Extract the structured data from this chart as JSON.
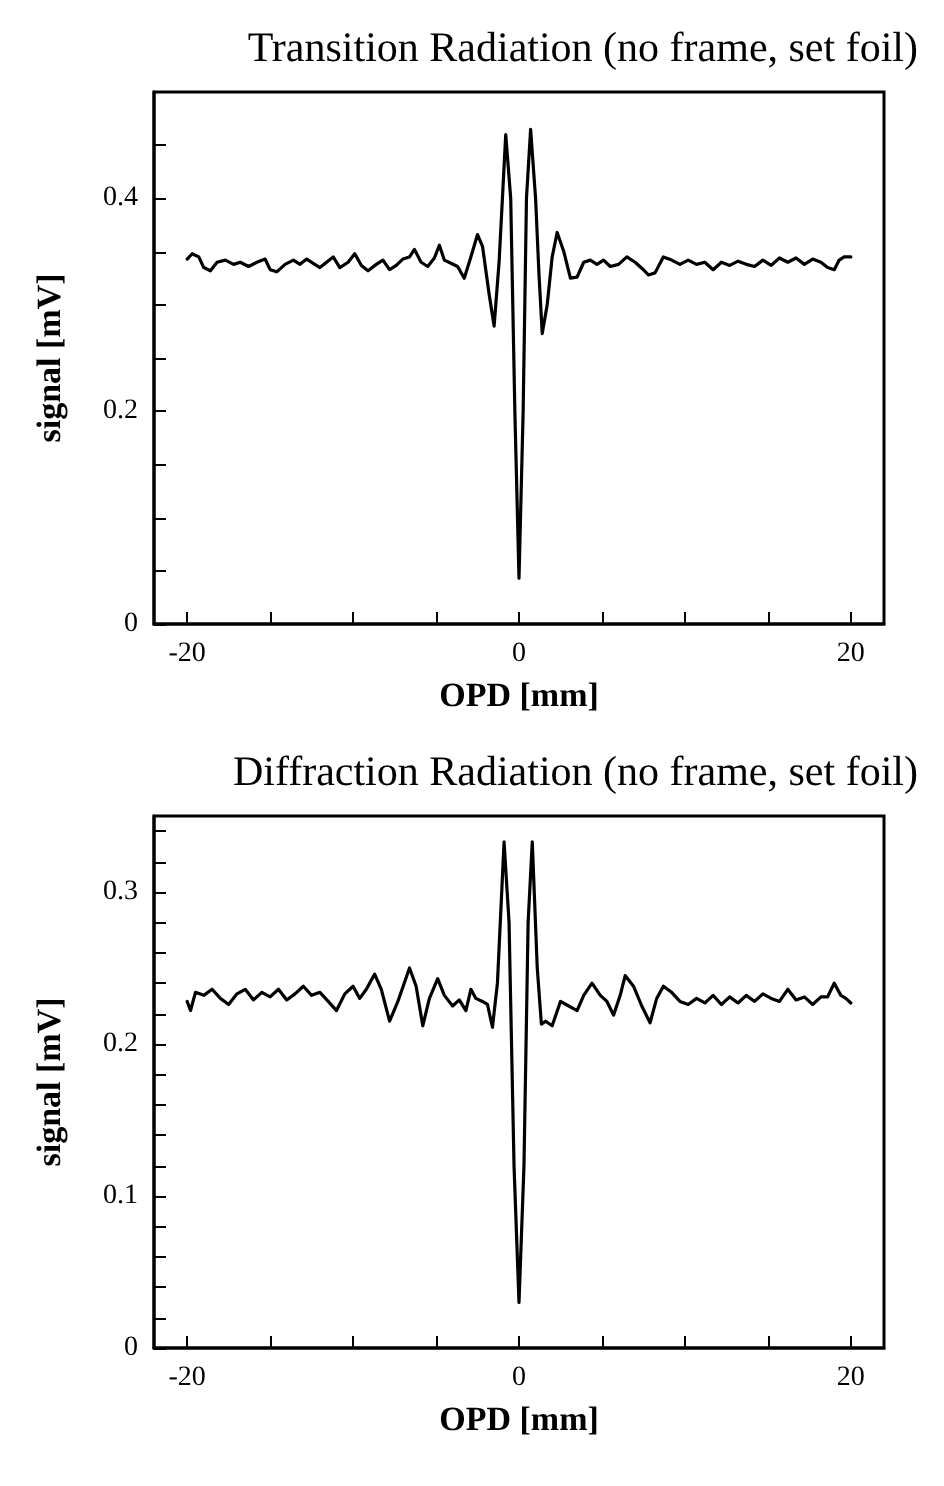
{
  "chart_data": [
    {
      "type": "line",
      "title": "Transition Radiation (no frame, set foil)",
      "xlabel": "OPD [mm]",
      "ylabel": "signal [mV]",
      "xlim": [
        -22,
        22
      ],
      "xticks": [
        -20,
        {
          "value": -15,
          "label": null
        },
        {
          "value": -10,
          "label": null
        },
        {
          "value": -5,
          "label": null
        },
        0,
        {
          "value": 5,
          "label": null
        },
        {
          "value": 10,
          "label": null
        },
        {
          "value": 15,
          "label": null
        },
        20
      ],
      "ylim": [
        0,
        0.5
      ],
      "yticks": [
        0,
        {
          "value": 0.05,
          "label": null
        },
        {
          "value": 0.1,
          "label": null
        },
        {
          "value": 0.15,
          "label": null
        },
        0.2,
        {
          "value": 0.25,
          "label": null
        },
        {
          "value": 0.3,
          "label": null
        },
        {
          "value": 0.35,
          "label": null
        },
        0.4,
        {
          "value": 0.45,
          "label": null
        }
      ],
      "grid": false,
      "marker": "none",
      "line_style": "solid",
      "x": [
        -20,
        -19.7,
        -19.3,
        -19,
        -18.6,
        -18.2,
        -17.7,
        -17.2,
        -16.8,
        -16.3,
        -15.8,
        -15.3,
        -15,
        -14.6,
        -14.1,
        -13.6,
        -13.2,
        -12.8,
        -12.4,
        -12,
        -11.6,
        -11.2,
        -10.8,
        -10.3,
        -9.9,
        -9.5,
        -9.1,
        -8.6,
        -8.2,
        -7.8,
        -7.4,
        -7,
        -6.6,
        -6.3,
        -5.9,
        -5.5,
        -5.1,
        -4.8,
        -4.5,
        -4.1,
        -3.7,
        -3.3,
        -2.9,
        -2.5,
        -2.2,
        -1.8,
        -1.5,
        -1.2,
        -0.8,
        -0.5,
        -0.25,
        0,
        0.25,
        0.45,
        0.7,
        1.0,
        1.2,
        1.4,
        1.7,
        2.0,
        2.3,
        2.7,
        3.1,
        3.5,
        3.9,
        4.3,
        4.7,
        5.1,
        5.5,
        6,
        6.5,
        7,
        7.5,
        7.8,
        8.2,
        8.7,
        9.2,
        9.7,
        10.2,
        10.7,
        11.2,
        11.7,
        12.2,
        12.7,
        13.2,
        13.7,
        14.2,
        14.7,
        15.2,
        15.7,
        16.2,
        16.7,
        17.2,
        17.7,
        18.2,
        18.6,
        19,
        19.3,
        19.6,
        20
      ],
      "series": [
        {
          "color": "#000000",
          "values": [
            0.343,
            0.348,
            0.345,
            0.335,
            0.332,
            0.34,
            0.342,
            0.338,
            0.34,
            0.336,
            0.34,
            0.343,
            0.333,
            0.331,
            0.338,
            0.342,
            0.338,
            0.343,
            0.339,
            0.335,
            0.34,
            0.345,
            0.335,
            0.34,
            0.348,
            0.337,
            0.332,
            0.338,
            0.342,
            0.333,
            0.337,
            0.343,
            0.345,
            0.352,
            0.34,
            0.336,
            0.344,
            0.356,
            0.342,
            0.339,
            0.336,
            0.325,
            0.345,
            0.366,
            0.355,
            0.31,
            0.28,
            0.34,
            0.46,
            0.4,
            0.2,
            0.043,
            0.2,
            0.4,
            0.465,
            0.4,
            0.33,
            0.273,
            0.3,
            0.345,
            0.368,
            0.35,
            0.325,
            0.326,
            0.34,
            0.342,
            0.338,
            0.342,
            0.336,
            0.338,
            0.345,
            0.34,
            0.333,
            0.328,
            0.33,
            0.345,
            0.342,
            0.338,
            0.342,
            0.338,
            0.34,
            0.333,
            0.34,
            0.337,
            0.341,
            0.338,
            0.336,
            0.342,
            0.337,
            0.344,
            0.34,
            0.344,
            0.338,
            0.343,
            0.34,
            0.335,
            0.333,
            0.342,
            0.345,
            0.345
          ]
        }
      ]
    },
    {
      "type": "line",
      "title": "Diffraction Radiation (no frame, set foil)",
      "xlabel": "OPD [mm]",
      "ylabel": "signal [mV]",
      "xlim": [
        -22,
        22
      ],
      "xticks": [
        -20,
        {
          "value": -15,
          "label": null
        },
        {
          "value": -10,
          "label": null
        },
        {
          "value": -5,
          "label": null
        },
        0,
        {
          "value": 5,
          "label": null
        },
        {
          "value": 10,
          "label": null
        },
        {
          "value": 15,
          "label": null
        },
        20
      ],
      "ylim": [
        0,
        0.35
      ],
      "yticks": [
        0,
        {
          "value": 0.02,
          "label": null
        },
        {
          "value": 0.04,
          "label": null
        },
        {
          "value": 0.06,
          "label": null
        },
        {
          "value": 0.08,
          "label": null
        },
        0.1,
        {
          "value": 0.12,
          "label": null
        },
        {
          "value": 0.14,
          "label": null
        },
        {
          "value": 0.16,
          "label": null
        },
        {
          "value": 0.18,
          "label": null
        },
        0.2,
        {
          "value": 0.22,
          "label": null
        },
        {
          "value": 0.24,
          "label": null
        },
        {
          "value": 0.26,
          "label": null
        },
        {
          "value": 0.28,
          "label": null
        },
        0.3,
        {
          "value": 0.32,
          "label": null
        },
        {
          "value": 0.34,
          "label": null
        }
      ],
      "grid": false,
      "marker": "none",
      "line_style": "solid",
      "x": [
        -20,
        -19.8,
        -19.5,
        -19,
        -18.5,
        -18,
        -17.5,
        -17,
        -16.5,
        -16,
        -15.5,
        -15,
        -14.5,
        -14,
        -13.5,
        -13,
        -12.5,
        -12,
        -11.5,
        -11,
        -10.5,
        -10,
        -9.6,
        -9.2,
        -8.7,
        -8.3,
        -7.8,
        -7.3,
        -6.6,
        -6.2,
        -5.8,
        -5.4,
        -4.9,
        -4.5,
        -4,
        -3.6,
        -3.2,
        -2.9,
        -2.6,
        -2.2,
        -1.9,
        -1.6,
        -1.3,
        -0.9,
        -0.6,
        -0.3,
        0,
        0.3,
        0.55,
        0.8,
        1.1,
        1.35,
        1.6,
        2.0,
        2.5,
        3.0,
        3.5,
        3.9,
        4.4,
        4.9,
        5.3,
        5.7,
        6.1,
        6.4,
        6.9,
        7.4,
        7.9,
        8.3,
        8.7,
        9.2,
        9.7,
        10.2,
        10.7,
        11.2,
        11.7,
        12.2,
        12.7,
        13.2,
        13.7,
        14.2,
        14.7,
        15.2,
        15.7,
        16.2,
        16.7,
        17.2,
        17.7,
        18.2,
        18.6,
        19,
        19.4,
        19.7,
        20
      ],
      "series": [
        {
          "color": "#000000",
          "values": [
            0.228,
            0.222,
            0.234,
            0.232,
            0.236,
            0.23,
            0.226,
            0.233,
            0.236,
            0.229,
            0.234,
            0.231,
            0.236,
            0.229,
            0.233,
            0.238,
            0.232,
            0.234,
            0.228,
            0.222,
            0.233,
            0.238,
            0.23,
            0.236,
            0.246,
            0.236,
            0.215,
            0.228,
            0.25,
            0.238,
            0.212,
            0.23,
            0.243,
            0.232,
            0.225,
            0.229,
            0.222,
            0.236,
            0.23,
            0.228,
            0.226,
            0.211,
            0.24,
            0.333,
            0.28,
            0.12,
            0.03,
            0.12,
            0.28,
            0.333,
            0.25,
            0.213,
            0.215,
            0.212,
            0.228,
            0.225,
            0.222,
            0.232,
            0.24,
            0.232,
            0.228,
            0.219,
            0.232,
            0.245,
            0.238,
            0.225,
            0.214,
            0.23,
            0.238,
            0.234,
            0.228,
            0.226,
            0.23,
            0.227,
            0.232,
            0.226,
            0.231,
            0.227,
            0.232,
            0.228,
            0.233,
            0.23,
            0.228,
            0.236,
            0.229,
            0.231,
            0.226,
            0.231,
            0.231,
            0.24,
            0.232,
            0.23,
            0.227
          ]
        }
      ]
    }
  ]
}
